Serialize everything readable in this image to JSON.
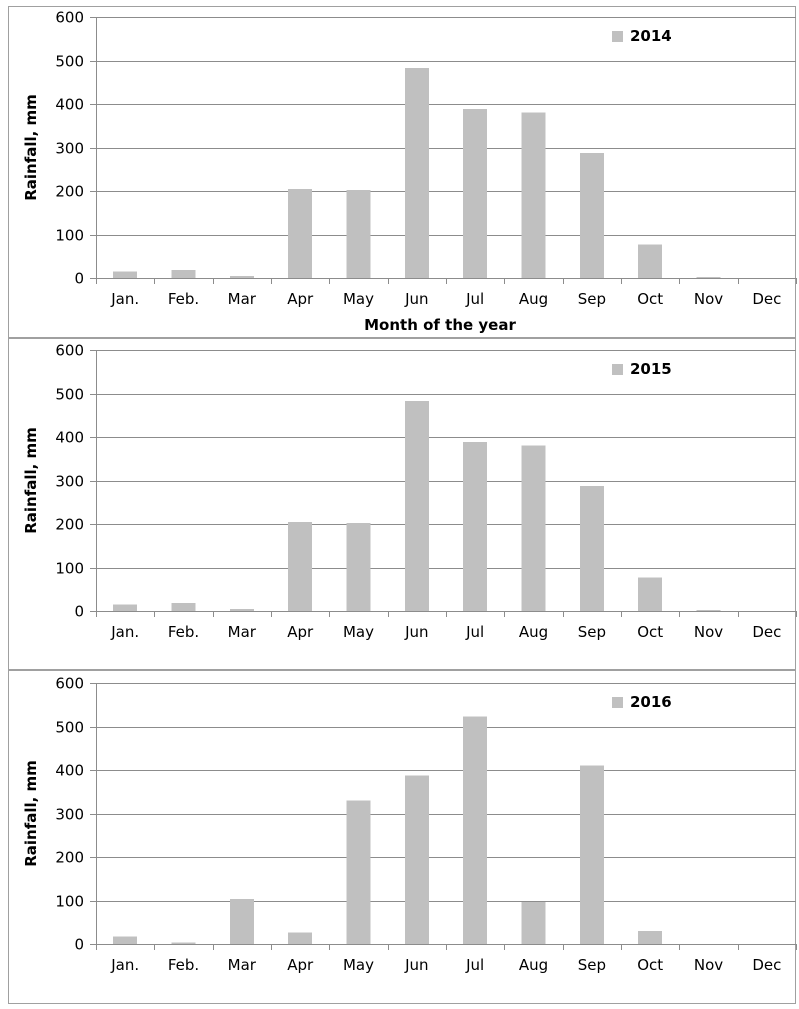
{
  "colors": {
    "bar": "#c0c0c0",
    "grid": "#8c8c8c",
    "frame": "#a0a0a0"
  },
  "chart_data": [
    {
      "type": "bar",
      "legend_position": "top-right",
      "grid": true,
      "ylabel": "Rainfall, mm",
      "xlabel": "Month of the year",
      "ylim": [
        0,
        600
      ],
      "yticks": [
        "0",
        "100",
        "200",
        "300",
        "400",
        "500",
        "600"
      ],
      "categories": [
        "Jan.",
        "Feb.",
        "Mar",
        "Apr",
        "May",
        "Jun",
        "Jul",
        "Aug",
        "Sep",
        "Oct",
        "Nov",
        "Dec"
      ],
      "series": [
        {
          "name": "2014",
          "values": [
            15,
            18,
            5,
            205,
            202,
            483,
            388,
            381,
            287,
            77,
            2,
            0
          ]
        }
      ]
    },
    {
      "type": "bar",
      "legend_position": "top-right",
      "grid": true,
      "ylabel": "Rainfall, mm",
      "xlabel": "",
      "ylim": [
        0,
        600
      ],
      "yticks": [
        "0",
        "100",
        "200",
        "300",
        "400",
        "500",
        "600"
      ],
      "categories": [
        "Jan.",
        "Feb.",
        "Mar",
        "Apr",
        "May",
        "Jun",
        "Jul",
        "Aug",
        "Sep",
        "Oct",
        "Nov",
        "Dec"
      ],
      "series": [
        {
          "name": "2015",
          "values": [
            15,
            18,
            5,
            205,
            202,
            483,
            388,
            381,
            287,
            77,
            2,
            0
          ]
        }
      ]
    },
    {
      "type": "bar",
      "legend_position": "top-right",
      "grid": true,
      "ylabel": "Rainfall, mm",
      "xlabel": "",
      "ylim": [
        0,
        600
      ],
      "yticks": [
        "0",
        "100",
        "200",
        "300",
        "400",
        "500",
        "600"
      ],
      "categories": [
        "Jan.",
        "Feb.",
        "Mar",
        "Apr",
        "May",
        "Jun",
        "Jul",
        "Aug",
        "Sep",
        "Oct",
        "Nov",
        "Dec"
      ],
      "series": [
        {
          "name": "2016",
          "values": [
            17,
            4,
            104,
            26,
            330,
            387,
            523,
            96,
            410,
            30,
            0,
            0
          ]
        }
      ]
    }
  ]
}
